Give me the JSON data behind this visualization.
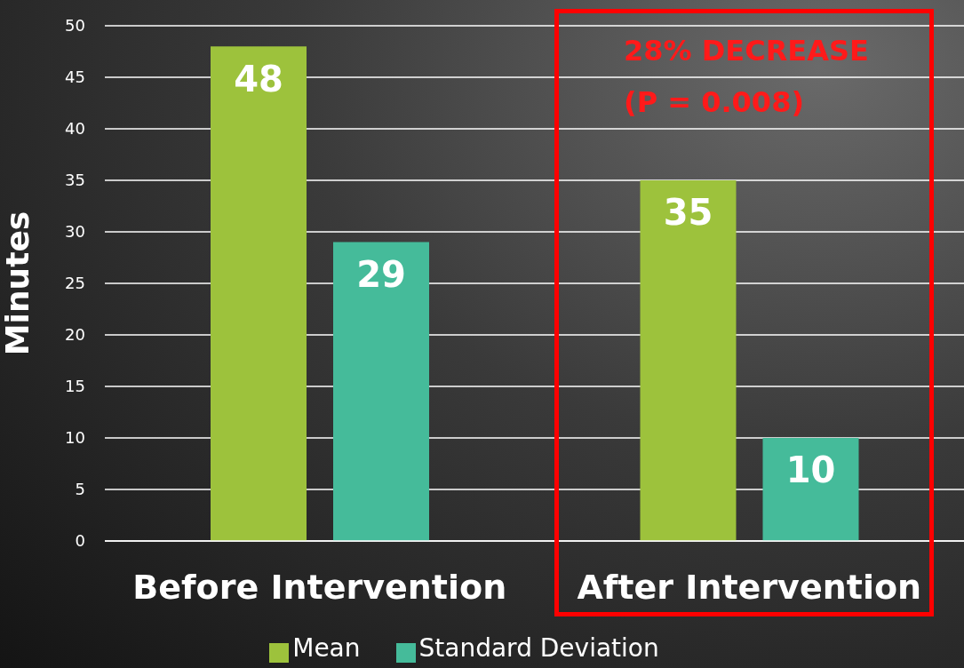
{
  "chart_data": {
    "type": "bar",
    "ylabel": "Minutes",
    "categories": [
      "Before Intervention",
      "After Intervention"
    ],
    "series": [
      {
        "name": "Mean",
        "color": "#9dc23c",
        "values": [
          48,
          35
        ]
      },
      {
        "name": "Standard Deviation",
        "color": "#45bb9a",
        "values": [
          29,
          10
        ]
      }
    ],
    "ylim": [
      0,
      50
    ],
    "yticks": [
      0,
      5,
      10,
      15,
      20,
      25,
      30,
      35,
      40,
      45,
      50
    ],
    "grid": "y",
    "legend": "bottom",
    "data_labels": true,
    "annotations": [
      "28% DECREASE",
      "(P = 0.008)"
    ]
  }
}
